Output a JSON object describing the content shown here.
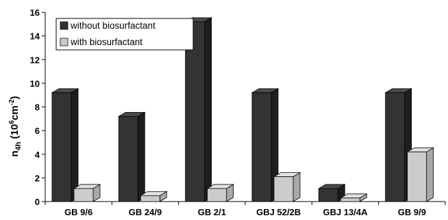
{
  "chart_data": {
    "type": "bar",
    "categories": [
      "GB 9/6",
      "GB 24/9",
      "GB 2/1",
      "GBJ 52/2B",
      "GBJ 13/4A",
      "GB 9/9"
    ],
    "series": [
      {
        "name": "without biosurfactant",
        "values": [
          9.2,
          7.2,
          15.2,
          9.2,
          1.1,
          9.2
        ]
      },
      {
        "name": "with biosurfactant",
        "values": [
          1.1,
          0.5,
          1.1,
          2.1,
          0.3,
          4.2
        ]
      }
    ],
    "ylabel": {
      "main": "n",
      "sub": "4h",
      "unit_open": " (10",
      "unit_sup": "6",
      "unit_mid": "cm",
      "unit_sup2": "-2",
      "unit_close": ")"
    },
    "ylim": [
      0,
      16
    ],
    "yticks": [
      "0",
      "2",
      "4",
      "6",
      "8",
      "10",
      "12",
      "14",
      "16"
    ],
    "grid": false,
    "legend_position": "top-left",
    "style": "3d-bar",
    "colors": {
      "without_front": "#333333",
      "without_top": "#4a4a4a",
      "without_side": "#1e1e1e",
      "with_front": "#cccccc",
      "with_top": "#e2e2e2",
      "with_side": "#a8a8a8"
    }
  }
}
